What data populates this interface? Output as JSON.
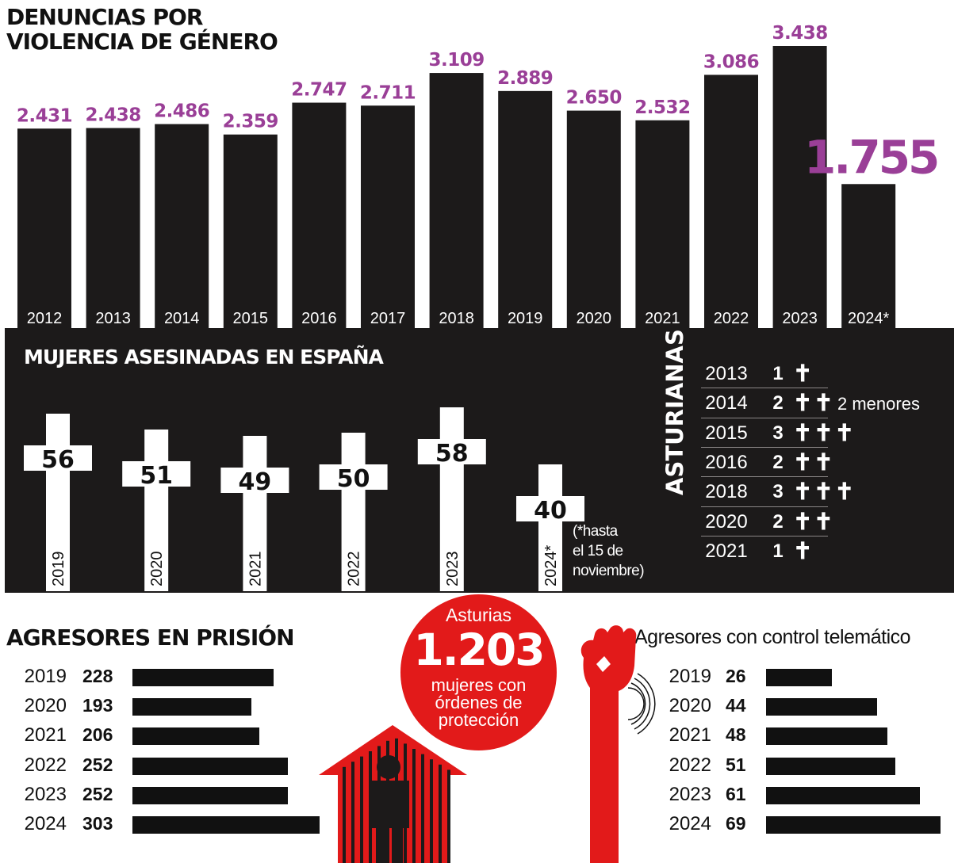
{
  "chart_data": [
    {
      "type": "bar",
      "title": "DENUNCIAS POR\nVIOLENCIA DE GÉNERO",
      "categories": [
        "2012",
        "2013",
        "2014",
        "2015",
        "2016",
        "2017",
        "2018",
        "2019",
        "2020",
        "2021",
        "2022",
        "2023",
        "2024*"
      ],
      "values": [
        2431,
        2438,
        2486,
        2359,
        2747,
        2711,
        3109,
        2889,
        2650,
        2532,
        3086,
        3438,
        1755
      ],
      "value_labels": [
        "2.431",
        "2.438",
        "2.486",
        "2.359",
        "2.747",
        "2.711",
        "3.109",
        "2.889",
        "2.650",
        "2.532",
        "3.086",
        "3.438",
        "1.755"
      ],
      "highlight_index": 12,
      "colors": {
        "bar": "#1c1a1a",
        "value": "#9a3f97",
        "tick": "#ffffff"
      },
      "ylim": [
        0,
        3438
      ]
    },
    {
      "type": "bar",
      "title": "MUJERES ASESINADAS EN ESPAÑA",
      "marker": "cross",
      "categories": [
        "2019",
        "2020",
        "2021",
        "2022",
        "2023",
        "2024*"
      ],
      "values": [
        56,
        51,
        49,
        50,
        58,
        40
      ],
      "note": "(*hasta\nel 15 de\nnoviembre)",
      "colors": {
        "panel": "#1c1a1a",
        "cross": "#ffffff",
        "text": "#111111"
      }
    },
    {
      "type": "table",
      "title": "ASTURIANAS",
      "rows": [
        {
          "year": "2013",
          "count": 1,
          "count_label": "1",
          "crosses": "✝",
          "note": ""
        },
        {
          "year": "2014",
          "count": 2,
          "count_label": "2",
          "crosses": "✝✝",
          "note": "2 menores"
        },
        {
          "year": "2015",
          "count": 3,
          "count_label": "3",
          "crosses": "✝✝✝",
          "note": ""
        },
        {
          "year": "2016",
          "count": 2,
          "count_label": "2",
          "crosses": "✝✝",
          "note": ""
        },
        {
          "year": "2018",
          "count": 3,
          "count_label": "3",
          "crosses": "✝✝✝",
          "note": ""
        },
        {
          "year": "2020",
          "count": 2,
          "count_label": "2",
          "crosses": "✝✝",
          "note": ""
        },
        {
          "year": "2021",
          "count": 1,
          "count_label": "1",
          "crosses": "✝",
          "note": ""
        }
      ]
    },
    {
      "type": "bar",
      "orientation": "horizontal",
      "title": "AGRESORES EN PRISIÓN",
      "categories": [
        "2019",
        "2020",
        "2021",
        "2022",
        "2023",
        "2024"
      ],
      "values": [
        228,
        193,
        206,
        252,
        252,
        303
      ],
      "xlim": [
        0,
        303
      ]
    },
    {
      "type": "bar",
      "orientation": "horizontal",
      "title": "Agresores con control telemático",
      "categories": [
        "2019",
        "2020",
        "2021",
        "2022",
        "2023",
        "2024"
      ],
      "values": [
        26,
        44,
        48,
        51,
        61,
        69
      ],
      "xlim": [
        0,
        69
      ]
    }
  ],
  "callout": {
    "region": "Asturias",
    "value": "1.203",
    "text": "mujeres con órdenes de protección",
    "color": "#e21a1a"
  },
  "icons": [
    "prisoner-house-icon",
    "raised-fist-icon"
  ]
}
